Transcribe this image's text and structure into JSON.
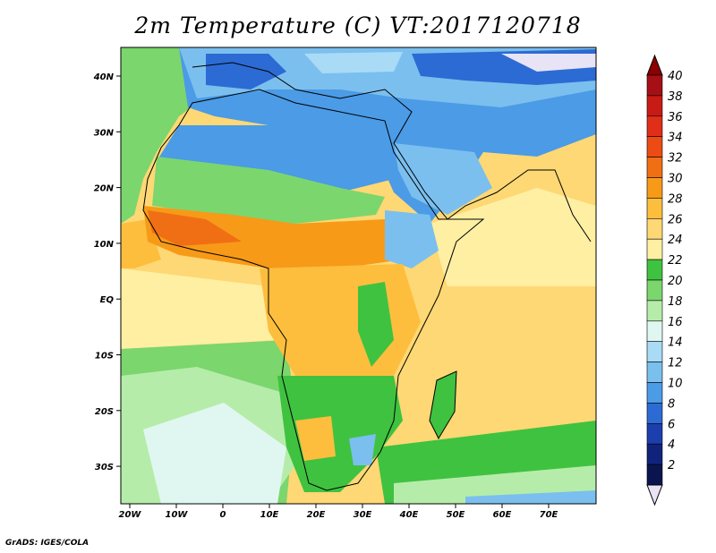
{
  "title": "2m Temperature (C) VT:2017120718",
  "footer": "GrADS: IGES/COLA",
  "map": {
    "lon_labels": [
      "20W",
      "10W",
      "0",
      "10E",
      "20E",
      "30E",
      "40E",
      "50E",
      "60E",
      "70E"
    ],
    "lat_labels": [
      "40N",
      "30N",
      "20N",
      "10N",
      "EQ",
      "10S",
      "20S",
      "30S"
    ]
  },
  "colorbar": {
    "labels": [
      "40",
      "38",
      "36",
      "34",
      "32",
      "30",
      "28",
      "26",
      "24",
      "22",
      "20",
      "18",
      "16",
      "14",
      "12",
      "10",
      "8",
      "6",
      "4",
      "2"
    ],
    "colors": [
      "#a50f15",
      "#c81b16",
      "#e02f18",
      "#ec4c13",
      "#f16f14",
      "#f79a18",
      "#fdbe3e",
      "#fed874",
      "#feefa3",
      "#3fc240",
      "#7bd66d",
      "#b6ecaa",
      "#e0f7f1",
      "#a9dbf6",
      "#7bbfef",
      "#4b9be6",
      "#2c6bd4",
      "#1d3fae",
      "#10237c",
      "#0a1550"
    ],
    "overflow_high": "#8b0000",
    "overflow_low": "#e8e4f6"
  }
}
